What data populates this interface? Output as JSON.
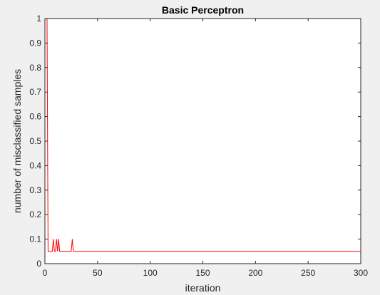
{
  "chart_data": {
    "type": "line",
    "title": "Basic Perceptron",
    "xlabel": "iteration",
    "ylabel": "number of misclassified samples",
    "xlim": [
      0,
      300
    ],
    "ylim": [
      0,
      1
    ],
    "xticks": [
      0,
      50,
      100,
      150,
      200,
      250,
      300
    ],
    "yticks": [
      0,
      0.1,
      0.2,
      0.3,
      0.4,
      0.5,
      0.6,
      0.7,
      0.8,
      0.9,
      1
    ],
    "xtick_labels": [
      "0",
      "50",
      "100",
      "150",
      "200",
      "250",
      "300"
    ],
    "ytick_labels": [
      "0",
      "0.1",
      "0.2",
      "0.3",
      "0.4",
      "0.5",
      "0.6",
      "0.7",
      "0.8",
      "0.9",
      "1"
    ],
    "grid": false,
    "series": [
      {
        "color": "#ff0000",
        "x": [
          1,
          2,
          3,
          4,
          7,
          8,
          9,
          10,
          11,
          12,
          13,
          14,
          15,
          25,
          26,
          27,
          300
        ],
        "y": [
          1,
          1,
          0.05,
          0.05,
          0.05,
          0.1,
          0.05,
          0.05,
          0.1,
          0.05,
          0.1,
          0.05,
          0.05,
          0.05,
          0.1,
          0.05,
          0.05
        ]
      }
    ]
  },
  "colors": {
    "background": "#f0f0f0",
    "axes_background": "#ffffff",
    "axes_color": "#262626",
    "line": "#ff0000"
  }
}
